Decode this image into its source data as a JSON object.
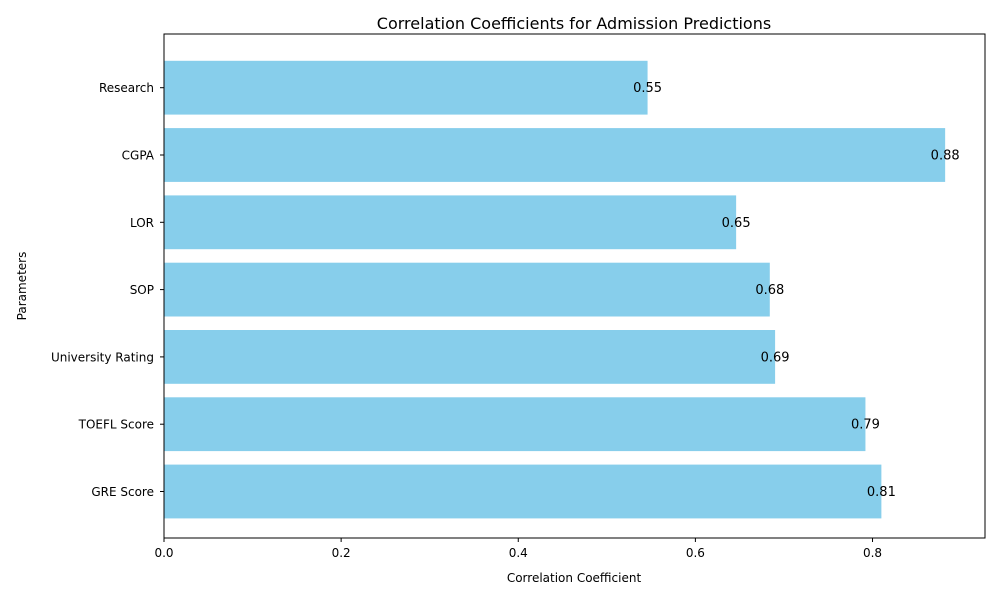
{
  "chart_data": {
    "type": "bar",
    "orientation": "horizontal",
    "title": "Correlation Coefficients for Admission Predictions",
    "xlabel": "Correlation Coefficient",
    "ylabel": "Parameters",
    "categories": [
      "GRE Score",
      "TOEFL Score",
      "University Rating",
      "SOP",
      "LOR",
      "CGPA",
      "Research"
    ],
    "values": [
      0.81,
      0.792,
      0.69,
      0.684,
      0.646,
      0.882,
      0.546
    ],
    "value_labels": [
      "0.81",
      "0.79",
      "0.69",
      "0.68",
      "0.65",
      "0.88",
      "0.55"
    ],
    "xlim": [
      0,
      0.927
    ],
    "xticks": [
      0.0,
      0.2,
      0.4,
      0.6,
      0.8
    ],
    "xtick_labels": [
      "0.0",
      "0.2",
      "0.4",
      "0.6",
      "0.8"
    ],
    "grid": false,
    "bar_color": "#87CEEB"
  }
}
